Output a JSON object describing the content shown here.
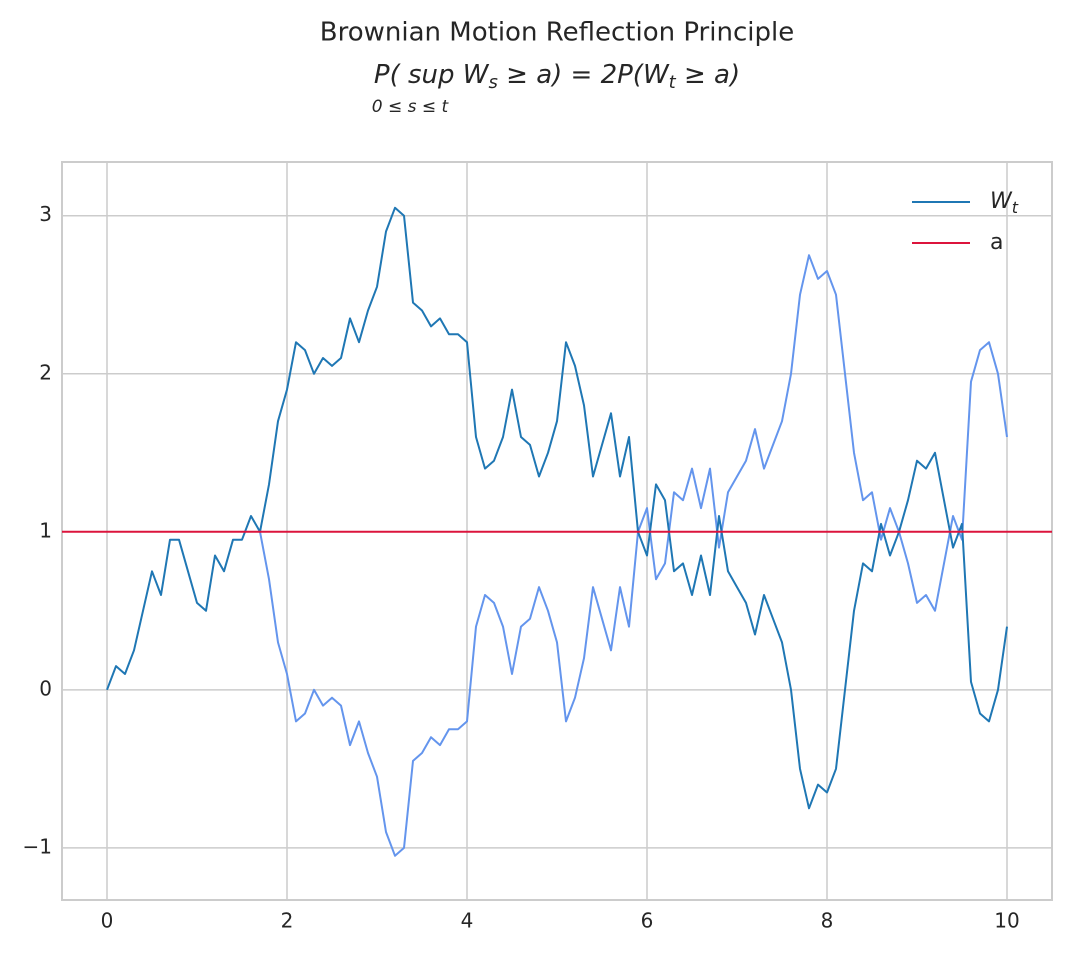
{
  "chart_data": {
    "type": "line",
    "title": "Brownian Motion Reflection Principle",
    "subtitle": [
      {
        "text": "P(  sup  W"
      },
      {
        "text": "s",
        "sub": true
      },
      {
        "text": " ≥ a) = 2P(W"
      },
      {
        "text": "t",
        "sub": true
      },
      {
        "text": " ≥ a)"
      }
    ],
    "subtitle_limit": "0 ≤ s ≤ t",
    "x": [
      0,
      0.1,
      0.2,
      0.3,
      0.4,
      0.5,
      0.6,
      0.7,
      0.8,
      0.9,
      1,
      1.1,
      1.2,
      1.3,
      1.4,
      1.5,
      1.6,
      1.7,
      1.8,
      1.9,
      2,
      2.1,
      2.2,
      2.3,
      2.4,
      2.5,
      2.6,
      2.7,
      2.8,
      2.9,
      3,
      3.1,
      3.2,
      3.3,
      3.4,
      3.5,
      3.6,
      3.7,
      3.8,
      3.9,
      4,
      4.1,
      4.2,
      4.3,
      4.4,
      4.5,
      4.6,
      4.7,
      4.8,
      4.9,
      5,
      5.1,
      5.2,
      5.3,
      5.4,
      5.5,
      5.6,
      5.7,
      5.8,
      5.9,
      6,
      6.1,
      6.2,
      6.3,
      6.4,
      6.5,
      6.6,
      6.7,
      6.8,
      6.9,
      7,
      7.1,
      7.2,
      7.3,
      7.4,
      7.5,
      7.6,
      7.7,
      7.8,
      7.9,
      8,
      8.1,
      8.2,
      8.3,
      8.4,
      8.5,
      8.6,
      8.7,
      8.8,
      8.9,
      9,
      9.1,
      9.2,
      9.3,
      9.4,
      9.5,
      9.6,
      9.7,
      9.8,
      9.9,
      10
    ],
    "series": [
      {
        "color": "#6495ed",
        "values": [
          null,
          null,
          null,
          null,
          null,
          null,
          null,
          null,
          null,
          null,
          null,
          null,
          null,
          null,
          null,
          null,
          null,
          1.0,
          0.7,
          0.3,
          0.1,
          -0.2,
          -0.15,
          0.0,
          -0.1,
          -0.05,
          -0.1,
          -0.35,
          -0.2,
          -0.4,
          -0.55,
          -0.9,
          -1.05,
          -1.0,
          -0.45,
          -0.4,
          -0.3,
          -0.35,
          -0.25,
          -0.25,
          -0.2,
          0.4,
          0.6,
          0.55,
          0.4,
          0.1,
          0.4,
          0.45,
          0.65,
          0.5,
          0.3,
          -0.2,
          -0.05,
          0.2,
          0.65,
          0.45,
          0.25,
          0.65,
          0.4,
          1.0,
          1.15,
          0.7,
          0.8,
          1.25,
          1.2,
          1.4,
          1.15,
          1.4,
          0.9,
          1.25,
          1.35,
          1.45,
          1.65,
          1.4,
          1.55,
          1.7,
          2.0,
          2.5,
          2.75,
          2.6,
          2.65,
          2.5,
          2.0,
          1.5,
          1.2,
          1.25,
          0.95,
          1.15,
          1.0,
          0.8,
          0.55,
          0.6,
          0.5,
          0.8,
          1.1,
          0.95,
          1.95,
          2.15,
          2.2,
          2.0,
          1.6
        ]
      },
      {
        "name": "W",
        "name_sub": "t",
        "color": "#1f77b4",
        "values": [
          0,
          0.15,
          0.1,
          0.25,
          0.5,
          0.75,
          0.6,
          0.95,
          0.95,
          0.75,
          0.55,
          0.5,
          0.85,
          0.75,
          0.95,
          0.95,
          1.1,
          1.0,
          1.3,
          1.7,
          1.9,
          2.2,
          2.15,
          2.0,
          2.1,
          2.05,
          2.1,
          2.35,
          2.2,
          2.4,
          2.55,
          2.9,
          3.05,
          3.0,
          2.45,
          2.4,
          2.3,
          2.35,
          2.25,
          2.25,
          2.2,
          1.6,
          1.4,
          1.45,
          1.6,
          1.9,
          1.6,
          1.55,
          1.35,
          1.5,
          1.7,
          2.2,
          2.05,
          1.8,
          1.35,
          1.55,
          1.75,
          1.35,
          1.6,
          1.0,
          0.85,
          1.3,
          1.2,
          0.75,
          0.8,
          0.6,
          0.85,
          0.6,
          1.1,
          0.75,
          0.65,
          0.55,
          0.35,
          0.6,
          0.45,
          0.3,
          0.0,
          -0.5,
          -0.75,
          -0.6,
          -0.65,
          -0.5,
          0.0,
          0.5,
          0.8,
          0.75,
          1.05,
          0.85,
          1.0,
          1.2,
          1.45,
          1.4,
          1.5,
          1.2,
          0.9,
          1.05,
          0.05,
          -0.15,
          -0.2,
          0.0,
          0.4
        ]
      }
    ],
    "hline": {
      "name": "a",
      "value": 1,
      "color": "#dc143c"
    },
    "xlim": [
      -0.5,
      10.5
    ],
    "ylim": [
      -1.33,
      3.34
    ],
    "xticks": [
      0,
      2,
      4,
      6,
      8,
      10
    ],
    "yticks": [
      {
        "value": -1,
        "label": "−1"
      },
      0,
      1,
      2,
      3
    ],
    "grid": true,
    "legend": "upper right"
  }
}
